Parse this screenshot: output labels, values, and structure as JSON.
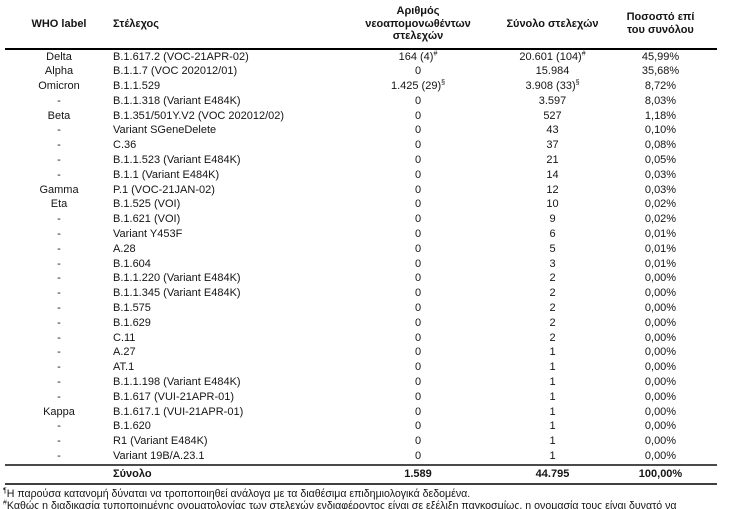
{
  "table": {
    "headers": [
      "WHO label",
      "Στέλεχος",
      "Αριθμός νεοαπομονωθέντων στελεχών",
      "Σύνολο στελεχών",
      "Ποσοστό επί του συνόλου"
    ],
    "rows": [
      {
        "who": "Delta",
        "strain": "B.1.617.2 (VOC-21APR-02)",
        "new": "164 (4)",
        "new_sup": "#",
        "total": "20.601 (104)",
        "total_sup": "#",
        "pct": "45,99%"
      },
      {
        "who": "Alpha",
        "strain": "B.1.1.7 (VOC 202012/01)",
        "new": "0",
        "new_sup": "",
        "total": "15.984",
        "total_sup": "",
        "pct": "35,68%"
      },
      {
        "who": "Omicron",
        "strain": "B.1.1.529",
        "new": "1.425 (29)",
        "new_sup": "§",
        "total": "3.908 (33)",
        "total_sup": "§",
        "pct": "8,72%"
      },
      {
        "who": "-",
        "strain": "B.1.1.318 (Variant E484K)",
        "new": "0",
        "new_sup": "",
        "total": "3.597",
        "total_sup": "",
        "pct": "8,03%"
      },
      {
        "who": "Beta",
        "strain": "B.1.351/501Y.V2 (VOC 202012/02)",
        "new": "0",
        "new_sup": "",
        "total": "527",
        "total_sup": "",
        "pct": "1,18%"
      },
      {
        "who": "-",
        "strain": "Variant SGeneDelete",
        "new": "0",
        "new_sup": "",
        "total": "43",
        "total_sup": "",
        "pct": "0,10%"
      },
      {
        "who": "-",
        "strain": "C.36",
        "new": "0",
        "new_sup": "",
        "total": "37",
        "total_sup": "",
        "pct": "0,08%"
      },
      {
        "who": "-",
        "strain": "B.1.1.523 (Variant E484K)",
        "new": "0",
        "new_sup": "",
        "total": "21",
        "total_sup": "",
        "pct": "0,05%"
      },
      {
        "who": "-",
        "strain": "B.1.1 (Variant E484K)",
        "new": "0",
        "new_sup": "",
        "total": "14",
        "total_sup": "",
        "pct": "0,03%"
      },
      {
        "who": "Gamma",
        "strain": "P.1 (VOC-21JAN-02)",
        "new": "0",
        "new_sup": "",
        "total": "12",
        "total_sup": "",
        "pct": "0,03%"
      },
      {
        "who": "Eta",
        "strain": "B.1.525 (VOI)",
        "new": "0",
        "new_sup": "",
        "total": "10",
        "total_sup": "",
        "pct": "0,02%"
      },
      {
        "who": "-",
        "strain": "B.1.621 (VOI)",
        "new": "0",
        "new_sup": "",
        "total": "9",
        "total_sup": "",
        "pct": "0,02%"
      },
      {
        "who": "-",
        "strain": "Variant Y453F",
        "new": "0",
        "new_sup": "",
        "total": "6",
        "total_sup": "",
        "pct": "0,01%"
      },
      {
        "who": "-",
        "strain": "A.28",
        "new": "0",
        "new_sup": "",
        "total": "5",
        "total_sup": "",
        "pct": "0,01%"
      },
      {
        "who": "-",
        "strain": "B.1.604",
        "new": "0",
        "new_sup": "",
        "total": "3",
        "total_sup": "",
        "pct": "0,01%"
      },
      {
        "who": "-",
        "strain": "B.1.1.220 (Variant E484K)",
        "new": "0",
        "new_sup": "",
        "total": "2",
        "total_sup": "",
        "pct": "0,00%"
      },
      {
        "who": "-",
        "strain": "B.1.1.345 (Variant E484K)",
        "new": "0",
        "new_sup": "",
        "total": "2",
        "total_sup": "",
        "pct": "0,00%"
      },
      {
        "who": "-",
        "strain": "B.1.575",
        "new": "0",
        "new_sup": "",
        "total": "2",
        "total_sup": "",
        "pct": "0,00%"
      },
      {
        "who": "-",
        "strain": "B.1.629",
        "new": "0",
        "new_sup": "",
        "total": "2",
        "total_sup": "",
        "pct": "0,00%"
      },
      {
        "who": "-",
        "strain": "C.11",
        "new": "0",
        "new_sup": "",
        "total": "2",
        "total_sup": "",
        "pct": "0,00%"
      },
      {
        "who": "-",
        "strain": "A.27",
        "new": "0",
        "new_sup": "",
        "total": "1",
        "total_sup": "",
        "pct": "0,00%"
      },
      {
        "who": "-",
        "strain": "AT.1",
        "new": "0",
        "new_sup": "",
        "total": "1",
        "total_sup": "",
        "pct": "0,00%"
      },
      {
        "who": "-",
        "strain": "B.1.1.198 (Variant E484K)",
        "new": "0",
        "new_sup": "",
        "total": "1",
        "total_sup": "",
        "pct": "0,00%"
      },
      {
        "who": "-",
        "strain": "B.1.617 (VUI-21APR-01)",
        "new": "0",
        "new_sup": "",
        "total": "1",
        "total_sup": "",
        "pct": "0,00%"
      },
      {
        "who": "Kappa",
        "strain": "B.1.617.1 (VUI-21APR-01)",
        "new": "0",
        "new_sup": "",
        "total": "1",
        "total_sup": "",
        "pct": "0,00%"
      },
      {
        "who": "-",
        "strain": "B.1.620",
        "new": "0",
        "new_sup": "",
        "total": "1",
        "total_sup": "",
        "pct": "0,00%"
      },
      {
        "who": "-",
        "strain": "R1 (Variant E484K)",
        "new": "0",
        "new_sup": "",
        "total": "1",
        "total_sup": "",
        "pct": "0,00%"
      },
      {
        "who": "-",
        "strain": "Variant 19B/A.23.1",
        "new": "0",
        "new_sup": "",
        "total": "1",
        "total_sup": "",
        "pct": "0,00%"
      }
    ],
    "total_row": {
      "label": "Σύνολο",
      "new": "1.589",
      "total": "44.795",
      "pct": "100,00%"
    }
  },
  "footnotes": [
    {
      "marker": "¶",
      "text": "Η παρούσα κατανομή δύναται να τροποποιηθεί ανάλογα με τα διαθέσιμα επιδημιολογικά δεδομένα."
    },
    {
      "marker": "#",
      "text": "Καθώς η διαδικασία τυποποιημένης ονοματολογίας των στελεχών ενδιαφέροντος είναι σε εξέλιξη παγκοσμίως, η ονομασία τους είναι δυνατό να"
    }
  ],
  "colors": {
    "background": "#ffffff",
    "text": "#151515",
    "header_rule": "#000000",
    "total_rule": "#4a4a4a"
  }
}
